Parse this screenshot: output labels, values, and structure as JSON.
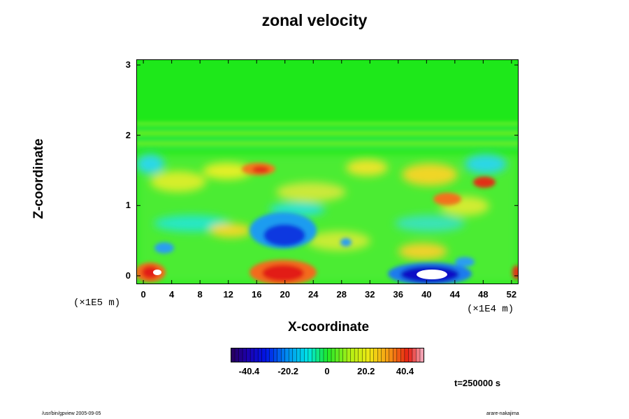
{
  "chart_data": {
    "type": "heatmap",
    "title": "zonal velocity",
    "xlabel": "X-coordinate",
    "ylabel": "Z-coordinate",
    "x_unit": "(×1E4 m)",
    "y_unit": "(×1E5 m)",
    "x_range": [
      -1,
      53
    ],
    "y_range": [
      -0.12,
      3.08
    ],
    "x_ticks": [
      "0",
      "4",
      "8",
      "12",
      "16",
      "20",
      "24",
      "28",
      "32",
      "36",
      "40",
      "44",
      "48",
      "52"
    ],
    "y_ticks": [
      "0",
      "1",
      "2",
      "3"
    ],
    "colorbar": {
      "min": -50,
      "max": 50,
      "ticks": [
        "-40.4",
        "-20.2",
        "0",
        "20.2",
        "40.4"
      ],
      "tick_values": [
        -40.4,
        -20.2,
        0,
        20.2,
        40.4
      ]
    },
    "features": [
      {
        "x": 19,
        "y": 0.55,
        "value": -40
      },
      {
        "x": 19,
        "y": 0.08,
        "value": 42
      },
      {
        "x": 39.5,
        "y": 0.0,
        "value": -55
      },
      {
        "x": 2,
        "y": 0.05,
        "value": 45
      },
      {
        "x": 17,
        "y": 1.5,
        "value": 30
      },
      {
        "x": 44,
        "y": 1.1,
        "value": 28
      },
      {
        "x": 50,
        "y": 1.3,
        "value": 32
      },
      {
        "x": 3,
        "y": 0.35,
        "value": -25
      },
      {
        "x": 10,
        "y": 0.55,
        "value": 18
      }
    ],
    "time_label": "t=250000 s"
  },
  "footer": {
    "left": "/usr/bin/gpview 2005-09-05",
    "right": "arare-nakajima"
  }
}
